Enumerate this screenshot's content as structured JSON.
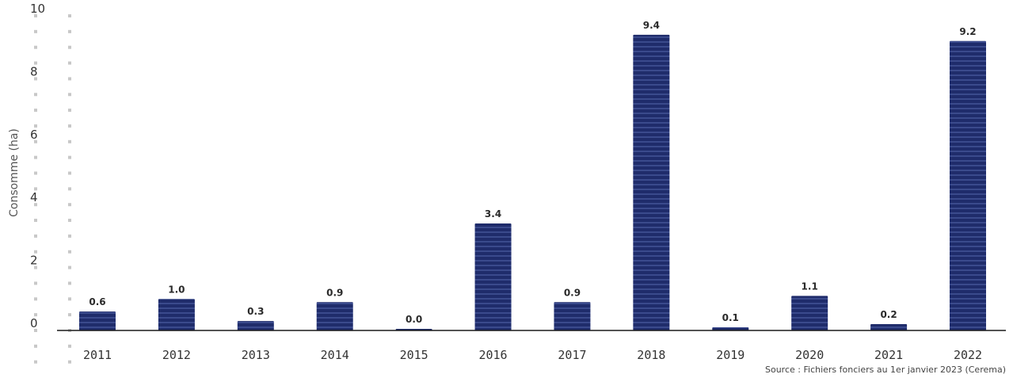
{
  "chart_data": {
    "type": "bar",
    "title": "",
    "ylabel": "Consomme (ha)",
    "xlabel": "",
    "categories": [
      "2011",
      "2012",
      "2013",
      "2014",
      "2015",
      "2016",
      "2017",
      "2018",
      "2019",
      "2020",
      "2021",
      "2022"
    ],
    "values": [
      0.6,
      1.0,
      0.3,
      0.9,
      0.0,
      3.4,
      0.9,
      9.4,
      0.1,
      1.1,
      0.2,
      9.2
    ],
    "value_labels": [
      "0.6",
      "1.0",
      "0.3",
      "0.9",
      "0.0",
      "3.4",
      "0.9",
      "9.4",
      "0.1",
      "1.1",
      "0.2",
      "9.2"
    ],
    "ylim": [
      0,
      10
    ],
    "yticks": [
      0,
      2,
      4,
      6,
      8,
      10
    ],
    "grid": false,
    "legend": "none",
    "bar_color": "#1f2c6b",
    "source": "Source : Fichiers fonciers au 1er janvier 2023 (Cerema)"
  }
}
